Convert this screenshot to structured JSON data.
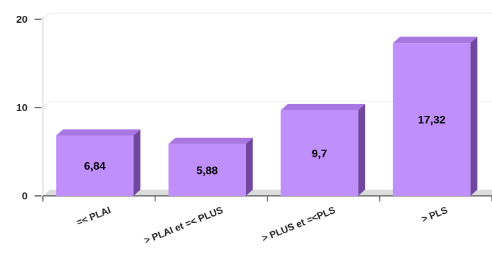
{
  "chart_data": {
    "type": "bar",
    "title": "",
    "xlabel": "",
    "ylabel": "",
    "categories": [
      "=< PLAI",
      "> PLAI et =< PLUS",
      "> PLUS et =<PLS",
      "> PLS"
    ],
    "values": [
      6.84,
      5.88,
      9.7,
      17.32
    ],
    "value_labels": [
      "6,84",
      "5,88",
      "9,7",
      "17,32"
    ],
    "ylim": [
      0,
      20
    ],
    "y_ticks": [
      0,
      10,
      20
    ],
    "y_tick_labels": [
      "0",
      "10",
      "20"
    ],
    "grid": true,
    "legend": "none",
    "style": "3d",
    "colors": {
      "bar_front": "#bf8ffb",
      "bar_top": "#a876e0",
      "bar_side": "#70479e",
      "floor": "#dcdcdc",
      "grid": "#e4e4e4"
    }
  }
}
